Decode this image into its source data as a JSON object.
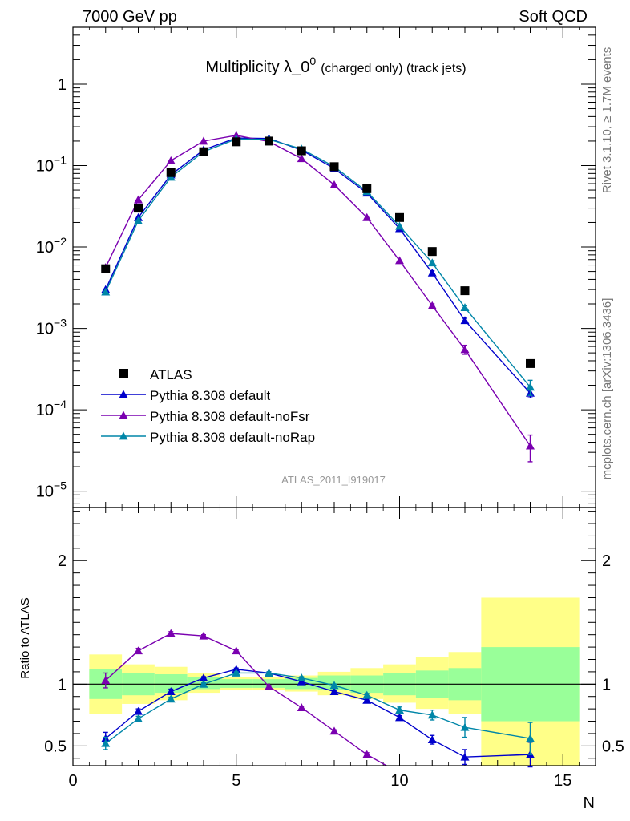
{
  "header": {
    "left": "7000 GeV pp",
    "right": "Soft QCD"
  },
  "title": {
    "main": "Multiplicity λ_0",
    "sup": "0",
    "paren": "(charged only) (track jets)"
  },
  "side_text": {
    "rivet": "Rivet 3.1.10, ≥ 1.7M events",
    "mcplots": "mcplots.cern.ch [arXiv:1306.3436]"
  },
  "analysis_id": "ATLAS_2011_I919017",
  "ratio_ylabel": "Ratio to ATLAS",
  "xlabel": "N",
  "chart_data": [
    {
      "type": "scatter",
      "panel": "main",
      "yscale": "log",
      "xlim": [
        0,
        16
      ],
      "ylim": [
        6.3e-06,
        5
      ],
      "xticks": [
        0,
        5,
        10,
        15
      ],
      "yticks": [
        {
          "v": 1,
          "m": "1",
          "e": ""
        },
        {
          "v": 0.1,
          "m": "10",
          "e": "−1"
        },
        {
          "v": 0.01,
          "m": "10",
          "e": "−2"
        },
        {
          "v": 0.001,
          "m": "10",
          "e": "−3"
        },
        {
          "v": 0.0001,
          "m": "10",
          "e": "−4"
        },
        {
          "v": 1e-05,
          "m": "10",
          "e": "−5"
        }
      ],
      "legend_position": "bottom-left",
      "data_series": {
        "name": "ATLAS",
        "color": "#000000",
        "x": [
          1,
          2,
          3,
          4,
          5,
          6,
          7,
          8,
          9,
          10,
          11,
          12,
          14
        ],
        "y": [
          0.0054,
          0.03,
          0.082,
          0.148,
          0.196,
          0.2,
          0.152,
          0.097,
          0.052,
          0.023,
          0.0088,
          0.0029,
          0.00037
        ]
      },
      "series": [
        {
          "name": "Pythia 8.308 default",
          "color": "#0000cc",
          "x": [
            1,
            2,
            3,
            4,
            5,
            6,
            7,
            8,
            9,
            10,
            11,
            12,
            14
          ],
          "y": [
            0.003,
            0.023,
            0.077,
            0.156,
            0.218,
            0.215,
            0.155,
            0.092,
            0.046,
            0.0168,
            0.0048,
            0.00125,
            0.00016
          ],
          "err": [
            0,
            0,
            0,
            0,
            0,
            0,
            0,
            0,
            0,
            0,
            0.0003,
            8e-05,
            2e-05
          ]
        },
        {
          "name": "Pythia 8.308 default-noFsr",
          "color": "#7a00b0",
          "x": [
            1,
            2,
            3,
            4,
            5,
            6,
            7,
            8,
            9,
            10,
            11,
            12,
            14
          ],
          "y": [
            0.0056,
            0.038,
            0.115,
            0.2,
            0.235,
            0.197,
            0.122,
            0.058,
            0.023,
            0.0068,
            0.0019,
            0.00055,
            3.6e-05
          ],
          "err": [
            0,
            0,
            0,
            0,
            0,
            0,
            0,
            0,
            0,
            0,
            0.0001,
            7e-05,
            1.3e-05
          ]
        },
        {
          "name": "Pythia 8.308 default-noRap",
          "color": "#0086a8",
          "x": [
            1,
            2,
            3,
            4,
            5,
            6,
            7,
            8,
            9,
            10,
            11,
            12,
            14
          ],
          "y": [
            0.0028,
            0.021,
            0.072,
            0.148,
            0.212,
            0.21,
            0.16,
            0.097,
            0.048,
            0.018,
            0.0064,
            0.0018,
            0.00019
          ],
          "err": [
            0,
            0,
            0,
            0,
            0,
            0,
            0,
            0,
            0,
            0,
            0.0004,
            0.0001,
            4e-05
          ]
        }
      ]
    },
    {
      "type": "line",
      "panel": "ratio",
      "ylabel": "Ratio to ATLAS",
      "xlabel": "N",
      "xlim": [
        0,
        16
      ],
      "ylim": [
        0.34,
        2.43
      ],
      "xticks": [
        0,
        5,
        10,
        15
      ],
      "yticks": [
        0.5,
        1,
        2
      ],
      "reference_line": 1,
      "bands": [
        {
          "x0": 0.5,
          "x1": 1.5,
          "g_lo": 0.88,
          "g_hi": 1.12,
          "y_lo": 0.76,
          "y_hi": 1.24
        },
        {
          "x0": 1.5,
          "x1": 2.5,
          "g_lo": 0.91,
          "g_hi": 1.09,
          "y_lo": 0.84,
          "y_hi": 1.16
        },
        {
          "x0": 2.5,
          "x1": 3.5,
          "g_lo": 0.93,
          "g_hi": 1.08,
          "y_lo": 0.87,
          "y_hi": 1.14
        },
        {
          "x0": 3.5,
          "x1": 4.5,
          "g_lo": 0.96,
          "g_hi": 1.06,
          "y_lo": 0.93,
          "y_hi": 1.09
        },
        {
          "x0": 4.5,
          "x1": 5.5,
          "g_lo": 0.97,
          "g_hi": 1.04,
          "y_lo": 0.95,
          "y_hi": 1.06
        },
        {
          "x0": 5.5,
          "x1": 6.5,
          "g_lo": 0.97,
          "g_hi": 1.04,
          "y_lo": 0.95,
          "y_hi": 1.06
        },
        {
          "x0": 6.5,
          "x1": 7.5,
          "g_lo": 0.96,
          "g_hi": 1.05,
          "y_lo": 0.94,
          "y_hi": 1.07
        },
        {
          "x0": 7.5,
          "x1": 8.5,
          "g_lo": 0.95,
          "g_hi": 1.07,
          "y_lo": 0.91,
          "y_hi": 1.1
        },
        {
          "x0": 8.5,
          "x1": 9.5,
          "g_lo": 0.93,
          "g_hi": 1.07,
          "y_lo": 0.88,
          "y_hi": 1.13
        },
        {
          "x0": 9.5,
          "x1": 10.5,
          "g_lo": 0.91,
          "g_hi": 1.09,
          "y_lo": 0.85,
          "y_hi": 1.16
        },
        {
          "x0": 10.5,
          "x1": 11.5,
          "g_lo": 0.89,
          "g_hi": 1.11,
          "y_lo": 0.8,
          "y_hi": 1.22
        },
        {
          "x0": 11.5,
          "x1": 12.5,
          "g_lo": 0.87,
          "g_hi": 1.13,
          "y_lo": 0.76,
          "y_hi": 1.26
        },
        {
          "x0": 12.5,
          "x1": 15.5,
          "g_lo": 0.7,
          "g_hi": 1.3,
          "y_lo": 0.34,
          "y_hi": 1.7
        }
      ],
      "series": [
        {
          "name": "Pythia 8.308 default",
          "color": "#0000cc",
          "x": [
            1,
            2,
            3,
            4,
            5,
            6,
            7,
            8,
            9,
            10,
            11,
            12,
            14
          ],
          "y": [
            0.56,
            0.78,
            0.94,
            1.05,
            1.12,
            1.09,
            1.02,
            0.94,
            0.87,
            0.73,
            0.55,
            0.41,
            0.43
          ],
          "err": [
            0.05,
            0.02,
            0.02,
            0.01,
            0.01,
            0.01,
            0.01,
            0.01,
            0.01,
            0.015,
            0.035,
            0.06,
            0.1
          ]
        },
        {
          "name": "Pythia 8.308 default-noFsr",
          "color": "#7a00b0",
          "x": [
            1,
            2,
            3,
            4,
            5,
            6,
            7,
            8,
            9,
            9.6
          ],
          "y": [
            1.03,
            1.27,
            1.41,
            1.39,
            1.27,
            0.98,
            0.81,
            0.62,
            0.43,
            0.34
          ],
          "err": [
            0.06,
            0.02,
            0.015,
            0.01,
            0.01,
            0.01,
            0.01,
            0.01,
            0.015,
            0
          ],
          "markers": [
            1,
            1,
            1,
            1,
            1,
            1,
            1,
            1,
            1,
            0
          ]
        },
        {
          "name": "Pythia 8.308 default-noRap",
          "color": "#0086a8",
          "x": [
            1,
            2,
            3,
            4,
            5,
            6,
            7,
            8,
            9,
            10,
            11,
            12,
            14
          ],
          "y": [
            0.52,
            0.72,
            0.88,
            1.0,
            1.09,
            1.09,
            1.05,
            0.99,
            0.91,
            0.79,
            0.75,
            0.65,
            0.56
          ],
          "err": [
            0.05,
            0.02,
            0.015,
            0.01,
            0.01,
            0.01,
            0.01,
            0.01,
            0.015,
            0.025,
            0.04,
            0.08,
            0.13
          ]
        }
      ]
    }
  ]
}
